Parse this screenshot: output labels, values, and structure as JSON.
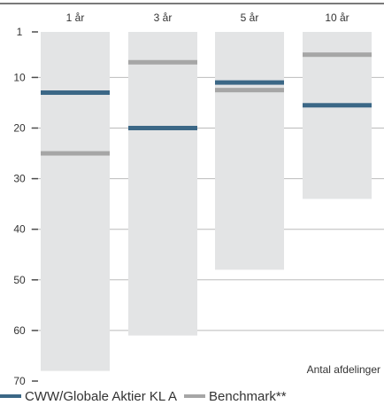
{
  "chart_data": {
    "type": "range-bar",
    "title": "",
    "xlabel": "",
    "ylabel": "",
    "y_axis": {
      "reversed": true,
      "range": [
        1,
        70
      ],
      "ticks": [
        1,
        10,
        20,
        30,
        40,
        50,
        60,
        70
      ]
    },
    "note": "Antal afdelinger",
    "categories": [
      "1 år",
      "3 år",
      "5 år",
      "10 år"
    ],
    "ranges": [
      {
        "from": 1,
        "to": 68
      },
      {
        "from": 1,
        "to": 61
      },
      {
        "from": 1,
        "to": 48
      },
      {
        "from": 1,
        "to": 34
      }
    ],
    "series": [
      {
        "name": "CWW/Globale Aktier KL A",
        "color": "#3b6786",
        "values": [
          13,
          20,
          11,
          15.5
        ]
      },
      {
        "name": "Benchmark**",
        "color": "#a6a6a6",
        "values": [
          25,
          7,
          12.5,
          5.5
        ]
      }
    ],
    "range_color": "#e3e4e5",
    "axis_color": "#4d4d4d",
    "gridline_color": "#bbbbbb"
  }
}
